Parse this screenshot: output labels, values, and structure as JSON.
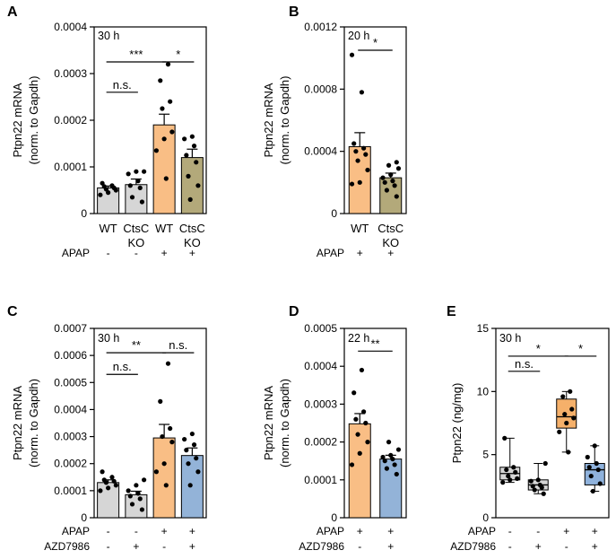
{
  "colors": {
    "grey": "#d6d6d6",
    "olive": "#b3a97a",
    "orange": "#f9be85",
    "blue": "#93b3d8",
    "boxgrey": "#d6d6d6",
    "boxorange": "#f5b06a",
    "boxblue": "#8fb2dc"
  },
  "chart_data": [
    {
      "panel": "A",
      "type": "bar",
      "time_label": "30 h",
      "ylabel_line1": "Ptpn22 mRNA",
      "ylabel_line2": "(norm. to Gapdh)",
      "ylim": [
        0,
        0.0004
      ],
      "yticks": [
        {
          "v": 0,
          "label": "0"
        },
        {
          "v": 0.0001,
          "label": "0.0001"
        },
        {
          "v": 0.0002,
          "label": "0.0002"
        },
        {
          "v": 0.0003,
          "label": "0.0003"
        },
        {
          "v": 0.0004,
          "label": "0.0004"
        }
      ],
      "categories": [
        {
          "l1": "WT",
          "l2": ""
        },
        {
          "l1": "CtsC",
          "l2": "KO"
        },
        {
          "l1": "WT",
          "l2": ""
        },
        {
          "l1": "CtsC",
          "l2": "KO"
        }
      ],
      "conditions": [
        {
          "name": "APAP",
          "values": [
            "-",
            "-",
            "+",
            "+"
          ]
        }
      ],
      "bars": [
        {
          "mean": 5.5e-05,
          "sem": 4e-06,
          "color": "grey",
          "points": [
            4e-05,
            4.5e-05,
            5e-05,
            5.2e-05,
            5.5e-05,
            5.8e-05,
            6e-05,
            6.5e-05
          ]
        },
        {
          "mean": 6.2e-05,
          "sem": 1.2e-05,
          "color": "grey",
          "points": [
            2.5e-05,
            3.5e-05,
            5.5e-05,
            6e-05,
            7e-05,
            8.5e-05,
            9e-05,
            9e-05
          ]
        },
        {
          "mean": 0.00019,
          "sem": 2.3e-05,
          "color": "orange",
          "points": [
            7.5e-05,
            0.000135,
            0.00016,
            0.000175,
            0.000225,
            0.00024,
            0.000285,
            0.00032
          ]
        },
        {
          "mean": 0.00012,
          "sem": 1.8e-05,
          "color": "olive",
          "points": [
            3e-05,
            6e-05,
            8e-05,
            0.00011,
            0.000125,
            0.000145,
            0.00016,
            0.000165
          ]
        }
      ],
      "significance": [
        {
          "from": 0,
          "to": 1,
          "y": 0.00026,
          "label": "n.s."
        },
        {
          "from": 0,
          "to": 2,
          "y": 0.000325,
          "label": "***"
        },
        {
          "from": 2,
          "to": 3,
          "y": 0.000325,
          "label": "*"
        }
      ]
    },
    {
      "panel": "B",
      "type": "bar",
      "time_label": "20 h",
      "ylabel_line1": "Ptpn22 mRNA",
      "ylabel_line2": "(norm. to Gapdh)",
      "ylim": [
        0,
        0.0012
      ],
      "yticks": [
        {
          "v": 0,
          "label": "0"
        },
        {
          "v": 0.0004,
          "label": "0.0004"
        },
        {
          "v": 0.0008,
          "label": "0.0008"
        },
        {
          "v": 0.0012,
          "label": "0.0012"
        }
      ],
      "categories": [
        {
          "l1": "WT",
          "l2": ""
        },
        {
          "l1": "CtsC",
          "l2": "KO"
        }
      ],
      "conditions": [
        {
          "name": "APAP",
          "values": [
            "+",
            "+"
          ]
        }
      ],
      "bars": [
        {
          "mean": 0.00043,
          "sem": 9e-05,
          "color": "orange",
          "points": [
            0.00019,
            0.0002,
            0.00028,
            0.00034,
            0.00038,
            0.0004,
            0.00042,
            0.00045,
            0.00078,
            0.00102
          ]
        },
        {
          "mean": 0.00023,
          "sem": 3e-05,
          "color": "olive",
          "points": [
            0.00011,
            0.00015,
            0.00018,
            0.0002,
            0.00021,
            0.00023,
            0.00025,
            0.00029,
            0.00031,
            0.00033
          ]
        }
      ],
      "significance": [
        {
          "from": 0,
          "to": 1,
          "y": 0.00105,
          "label": "*"
        }
      ]
    },
    {
      "panel": "C",
      "type": "bar",
      "time_label": "30 h",
      "ylabel_line1": "Ptpn22 mRNA",
      "ylabel_line2": "(norm. to Gapdh)",
      "ylim": [
        0,
        0.0007
      ],
      "yticks": [
        {
          "v": 0,
          "label": "0"
        },
        {
          "v": 0.0001,
          "label": "0.0001"
        },
        {
          "v": 0.0002,
          "label": "0.0002"
        },
        {
          "v": 0.0003,
          "label": "0.0003"
        },
        {
          "v": 0.0004,
          "label": "0.0004"
        },
        {
          "v": 0.0005,
          "label": "0.0005"
        },
        {
          "v": 0.0006,
          "label": "0.0006"
        },
        {
          "v": 0.0007,
          "label": "0.0007"
        }
      ],
      "categories": [
        {
          "l1": "",
          "l2": ""
        },
        {
          "l1": "",
          "l2": ""
        },
        {
          "l1": "",
          "l2": ""
        },
        {
          "l1": "",
          "l2": ""
        }
      ],
      "conditions": [
        {
          "name": "APAP",
          "values": [
            "-",
            "-",
            "+",
            "+"
          ]
        },
        {
          "name": "AZD7986",
          "values": [
            "-",
            "+",
            "-",
            "+"
          ]
        }
      ],
      "bars": [
        {
          "mean": 0.00013,
          "sem": 1e-05,
          "color": "grey",
          "points": [
            0.0001,
            0.00011,
            0.00012,
            0.00013,
            0.000135,
            0.00014,
            0.00015,
            0.00017
          ]
        },
        {
          "mean": 8.5e-05,
          "sem": 1.3e-05,
          "color": "grey",
          "points": [
            3e-05,
            5e-05,
            7e-05,
            8e-05,
            9e-05,
            0.0001,
            0.00012,
            0.00014
          ]
        },
        {
          "mean": 0.000295,
          "sem": 5e-05,
          "color": "orange",
          "points": [
            0.00012,
            0.00017,
            0.0002,
            0.00028,
            0.0003,
            0.00033,
            0.00043,
            0.00057
          ]
        },
        {
          "mean": 0.00023,
          "sem": 2.8e-05,
          "color": "blue",
          "points": [
            0.00012,
            0.00017,
            0.0002,
            0.00022,
            0.00025,
            0.00027,
            0.00029,
            0.00031
          ]
        }
      ],
      "significance": [
        {
          "from": 0,
          "to": 1,
          "y": 0.00053,
          "label": "n.s."
        },
        {
          "from": 0,
          "to": 2,
          "y": 0.00061,
          "label": "**"
        },
        {
          "from": 2,
          "to": 3,
          "y": 0.00061,
          "label": "n.s."
        }
      ]
    },
    {
      "panel": "D",
      "type": "bar",
      "time_label": "22 h",
      "ylabel_line1": "Ptpn22 mRNA",
      "ylabel_line2": "(norm. to Gapdh)",
      "ylim": [
        0,
        0.0005
      ],
      "yticks": [
        {
          "v": 0,
          "label": "0"
        },
        {
          "v": 0.0001,
          "label": "0.0001"
        },
        {
          "v": 0.0002,
          "label": "0.0002"
        },
        {
          "v": 0.0003,
          "label": "0.0003"
        },
        {
          "v": 0.0004,
          "label": "0.0004"
        },
        {
          "v": 0.0005,
          "label": "0.0005"
        }
      ],
      "categories": [
        {
          "l1": "",
          "l2": ""
        },
        {
          "l1": "",
          "l2": ""
        }
      ],
      "conditions": [
        {
          "name": "APAP",
          "values": [
            "+",
            "+"
          ]
        },
        {
          "name": "AZD7986",
          "values": [
            "-",
            "+"
          ]
        }
      ],
      "bars": [
        {
          "mean": 0.000248,
          "sem": 2.7e-05,
          "color": "orange",
          "points": [
            0.00014,
            0.00017,
            0.0002,
            0.00022,
            0.00025,
            0.00026,
            0.00028,
            0.00033,
            0.00039
          ]
        },
        {
          "mean": 0.000155,
          "sem": 1e-05,
          "color": "blue",
          "points": [
            0.000115,
            0.00013,
            0.00014,
            0.00015,
            0.000155,
            0.00016,
            0.000165,
            0.00018,
            0.0002
          ]
        }
      ],
      "significance": [
        {
          "from": 0,
          "to": 1,
          "y": 0.00044,
          "label": "**"
        }
      ]
    },
    {
      "panel": "E",
      "type": "box",
      "time_label": "30 h",
      "ylabel_line1": "Ptpn22 (ng/mg)",
      "ylabel_line2": "",
      "ylim": [
        0,
        15
      ],
      "yticks": [
        {
          "v": 0,
          "label": "0"
        },
        {
          "v": 5,
          "label": "5"
        },
        {
          "v": 10,
          "label": "10"
        },
        {
          "v": 15,
          "label": "15"
        }
      ],
      "categories": [
        {
          "l1": "",
          "l2": ""
        },
        {
          "l1": "",
          "l2": ""
        },
        {
          "l1": "",
          "l2": ""
        },
        {
          "l1": "",
          "l2": ""
        }
      ],
      "conditions": [
        {
          "name": "APAP",
          "values": [
            "-",
            "-",
            "+",
            "+"
          ]
        },
        {
          "name": "AZD7986",
          "values": [
            "-",
            "+",
            "-",
            "+"
          ]
        }
      ],
      "boxes": [
        {
          "min": 2.8,
          "q1": 3.0,
          "median": 3.5,
          "q3": 4.0,
          "max": 6.3,
          "color": "boxgrey",
          "points": [
            2.8,
            3.0,
            3.1,
            3.3,
            3.6,
            3.8,
            4.0,
            6.3
          ]
        },
        {
          "min": 1.9,
          "q1": 2.2,
          "median": 2.6,
          "q3": 3.0,
          "max": 4.3,
          "color": "boxgrey",
          "points": [
            1.9,
            2.2,
            2.4,
            2.5,
            2.6,
            2.9,
            3.0,
            4.3
          ]
        },
        {
          "min": 5.2,
          "q1": 7.1,
          "median": 8.0,
          "q3": 9.4,
          "max": 10.0,
          "color": "boxorange",
          "points": [
            5.2,
            6.8,
            7.5,
            7.9,
            8.2,
            8.6,
            9.6,
            10.0
          ]
        },
        {
          "min": 2.1,
          "q1": 2.6,
          "median": 3.8,
          "q3": 4.3,
          "max": 5.7,
          "color": "boxblue",
          "points": [
            2.1,
            2.7,
            3.3,
            3.8,
            4.0,
            4.3,
            4.8,
            5.7
          ]
        }
      ],
      "significance": [
        {
          "from": 0,
          "to": 1,
          "y": 11.6,
          "label": "n.s."
        },
        {
          "from": 0,
          "to": 2,
          "y": 12.8,
          "label": "*"
        },
        {
          "from": 2,
          "to": 3,
          "y": 12.8,
          "label": "*"
        }
      ]
    }
  ]
}
